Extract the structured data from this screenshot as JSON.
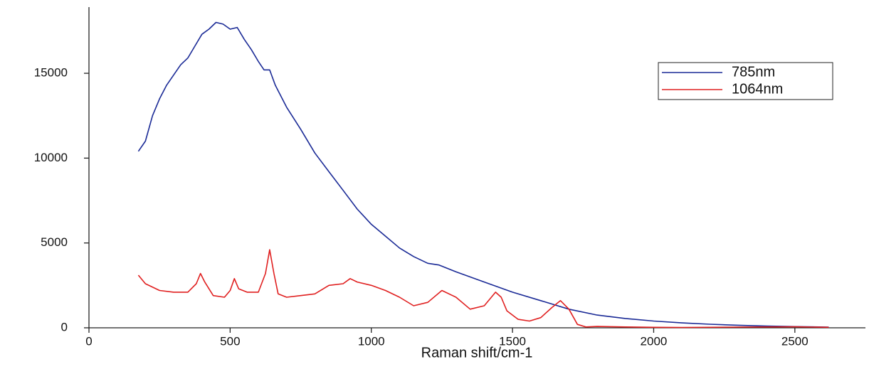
{
  "chart_data": {
    "type": "line",
    "x_label": "Raman shift/cm-1",
    "xlim": [
      0,
      2750
    ],
    "xticks": [
      0,
      500,
      1000,
      1500,
      2000,
      2500
    ],
    "ylim": [
      0,
      18900
    ],
    "yticks": [
      0,
      5000,
      10000,
      15000
    ],
    "grid": false,
    "legend": "upper right",
    "series": [
      {
        "name": "785nm",
        "color": "#1a2a96",
        "x": [
          175,
          200,
          225,
          250,
          275,
          300,
          325,
          350,
          375,
          400,
          425,
          450,
          475,
          500,
          525,
          550,
          575,
          600,
          620,
          640,
          660,
          700,
          750,
          800,
          850,
          900,
          950,
          1000,
          1050,
          1100,
          1150,
          1200,
          1240,
          1300,
          1400,
          1500,
          1600,
          1700,
          1800,
          1900,
          2000,
          2100,
          2200,
          2300,
          2400,
          2500,
          2620
        ],
        "values": [
          10400,
          11000,
          12500,
          13500,
          14300,
          14900,
          15500,
          15900,
          16600,
          17300,
          17600,
          18000,
          17900,
          17600,
          17700,
          17000,
          16400,
          15700,
          15200,
          15200,
          14300,
          13000,
          11700,
          10300,
          9200,
          8100,
          7000,
          6100,
          5400,
          4700,
          4200,
          3800,
          3700,
          3300,
          2700,
          2100,
          1600,
          1100,
          750,
          550,
          400,
          290,
          210,
          150,
          100,
          70,
          40
        ]
      },
      {
        "name": "1064nm",
        "color": "#e02020",
        "x": [
          175,
          200,
          250,
          300,
          350,
          380,
          395,
          410,
          440,
          480,
          500,
          515,
          530,
          560,
          600,
          625,
          640,
          655,
          670,
          700,
          750,
          800,
          850,
          900,
          925,
          950,
          1000,
          1050,
          1100,
          1150,
          1200,
          1250,
          1300,
          1350,
          1400,
          1440,
          1460,
          1480,
          1520,
          1560,
          1600,
          1640,
          1670,
          1700,
          1730,
          1760,
          1800,
          1900,
          2000,
          2100,
          2300,
          2500,
          2620
        ],
        "values": [
          3100,
          2600,
          2200,
          2100,
          2100,
          2600,
          3200,
          2700,
          1900,
          1800,
          2200,
          2900,
          2300,
          2100,
          2100,
          3200,
          4600,
          3200,
          2000,
          1800,
          1900,
          2000,
          2500,
          2600,
          2900,
          2700,
          2500,
          2200,
          1800,
          1300,
          1500,
          2200,
          1800,
          1100,
          1300,
          2100,
          1800,
          1000,
          500,
          400,
          600,
          1200,
          1600,
          1100,
          200,
          50,
          80,
          50,
          30,
          20,
          40,
          60,
          30
        ]
      }
    ]
  }
}
